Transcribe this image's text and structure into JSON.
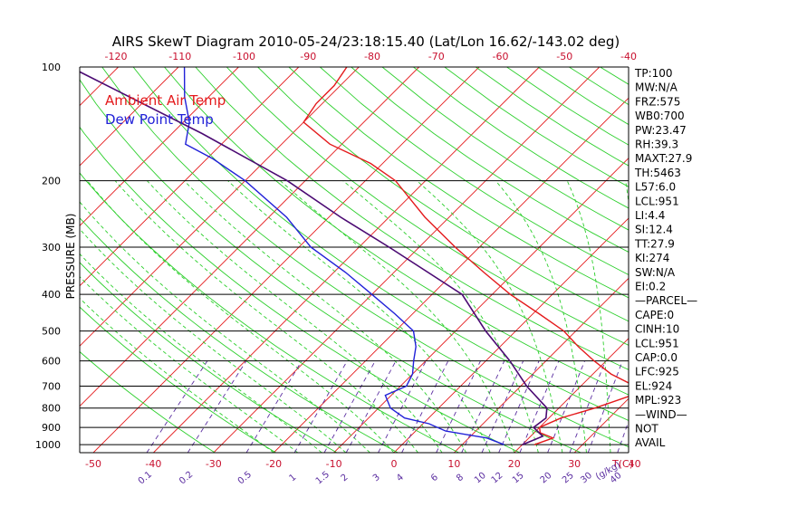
{
  "chart_data": {
    "type": "line",
    "subtype": "skew-t log-p diagram",
    "title": "AIRS SkewT Diagram 2010-05-24/23:18:15.40 (Lat/Lon 16.62/-143.02 deg)",
    "ylabel": "PRESSURE (MB)",
    "xlabel_bottom_unit": "T(C)",
    "mixing_ratio_unit": "(g/kg)",
    "ylim": [
      1050,
      100
    ],
    "y_scale": "log",
    "xlim": [
      -55,
      42
    ],
    "grid": true,
    "legend_position": "top-left",
    "legend": [
      {
        "label": "Ambient Air Temp",
        "color": "#e41a1c"
      },
      {
        "label": "Dew Point Temp",
        "color": "#2121d8"
      }
    ],
    "pressure_ticks": [
      100,
      200,
      300,
      400,
      500,
      600,
      700,
      800,
      900,
      1000
    ],
    "bottom_temp_ticks": [
      -50,
      -40,
      -30,
      -20,
      -10,
      0,
      10,
      20,
      30,
      40
    ],
    "top_temp_ticks": [
      -120,
      -110,
      -100,
      -90,
      -80,
      -70,
      -60,
      -50,
      -40
    ],
    "mixing_ratio_ticks": [
      "0.1",
      "0.2",
      "0.5",
      "1",
      "1.5",
      "2",
      "3",
      "4",
      "6",
      "8",
      "10",
      "12",
      "15",
      "20",
      "25",
      "30",
      "40"
    ],
    "series": [
      {
        "name": "Ambient Air Temp",
        "color": "#e41a1c",
        "points": [
          [
            1000,
            22
          ],
          [
            960,
            24
          ],
          [
            930,
            21
          ],
          [
            900,
            20
          ],
          [
            850,
            22
          ],
          [
            800,
            26
          ],
          [
            740,
            30
          ],
          [
            700,
            29
          ],
          [
            650,
            23
          ],
          [
            600,
            18
          ],
          [
            550,
            13
          ],
          [
            500,
            8
          ],
          [
            450,
            1
          ],
          [
            400,
            -7
          ],
          [
            350,
            -15
          ],
          [
            300,
            -24
          ],
          [
            250,
            -34
          ],
          [
            200,
            -45
          ],
          [
            180,
            -52
          ],
          [
            160,
            -62
          ],
          [
            140,
            -70
          ],
          [
            125,
            -71
          ],
          [
            112,
            -71
          ],
          [
            100,
            -72
          ]
        ]
      },
      {
        "name": "Dew Point Temp",
        "color": "#2121d8",
        "points": [
          [
            1000,
            17
          ],
          [
            960,
            13
          ],
          [
            920,
            5
          ],
          [
            880,
            1
          ],
          [
            850,
            -4
          ],
          [
            800,
            -8
          ],
          [
            740,
            -11
          ],
          [
            700,
            -9
          ],
          [
            650,
            -10
          ],
          [
            600,
            -12
          ],
          [
            550,
            -14
          ],
          [
            500,
            -17
          ],
          [
            450,
            -23
          ],
          [
            400,
            -30
          ],
          [
            350,
            -38
          ],
          [
            300,
            -48
          ],
          [
            250,
            -57
          ],
          [
            200,
            -70
          ],
          [
            175,
            -79
          ],
          [
            160,
            -86
          ],
          [
            140,
            -89
          ],
          [
            120,
            -94
          ],
          [
            100,
            -99
          ]
        ]
      },
      {
        "name": "",
        "color": "#4b0a73",
        "points": [
          [
            1000,
            20
          ],
          [
            950,
            22
          ],
          [
            900,
            19
          ],
          [
            850,
            19.5
          ],
          [
            800,
            18
          ],
          [
            700,
            11
          ],
          [
            600,
            4
          ],
          [
            500,
            -5
          ],
          [
            400,
            -15
          ],
          [
            300,
            -35
          ],
          [
            250,
            -48
          ],
          [
            200,
            -63
          ],
          [
            150,
            -85
          ],
          [
            100,
            -118
          ]
        ]
      }
    ],
    "indices_panel": [
      "TP:100",
      "MW:N/A",
      "FRZ:575",
      "WB0:700",
      "PW:23.47",
      "RH:39.3",
      "MAXT:27.9",
      "TH:5463",
      "L57:6.0",
      "LCL:951",
      "LI:4.4",
      "SI:12.4",
      "TT:27.9",
      "KI:274",
      "SW:N/A",
      "EI:0.2",
      "—PARCEL—",
      "CAPE:0",
      "CINH:10",
      "LCL:951",
      "CAP:0.0",
      "LFC:925",
      "EL:924",
      "MPL:923",
      "—WIND—",
      "NOT",
      "AVAIL"
    ]
  },
  "colors": {
    "isotherm": "#e41a1c",
    "dry_adiabat": "#2ccf2c",
    "moist_adiabat": "#2ccf2c",
    "mixing_ratio": "#5a2da0",
    "isobar": "#000000",
    "axis_label_bottom": "#c8102e",
    "axis_label_top": "#c8102e"
  }
}
